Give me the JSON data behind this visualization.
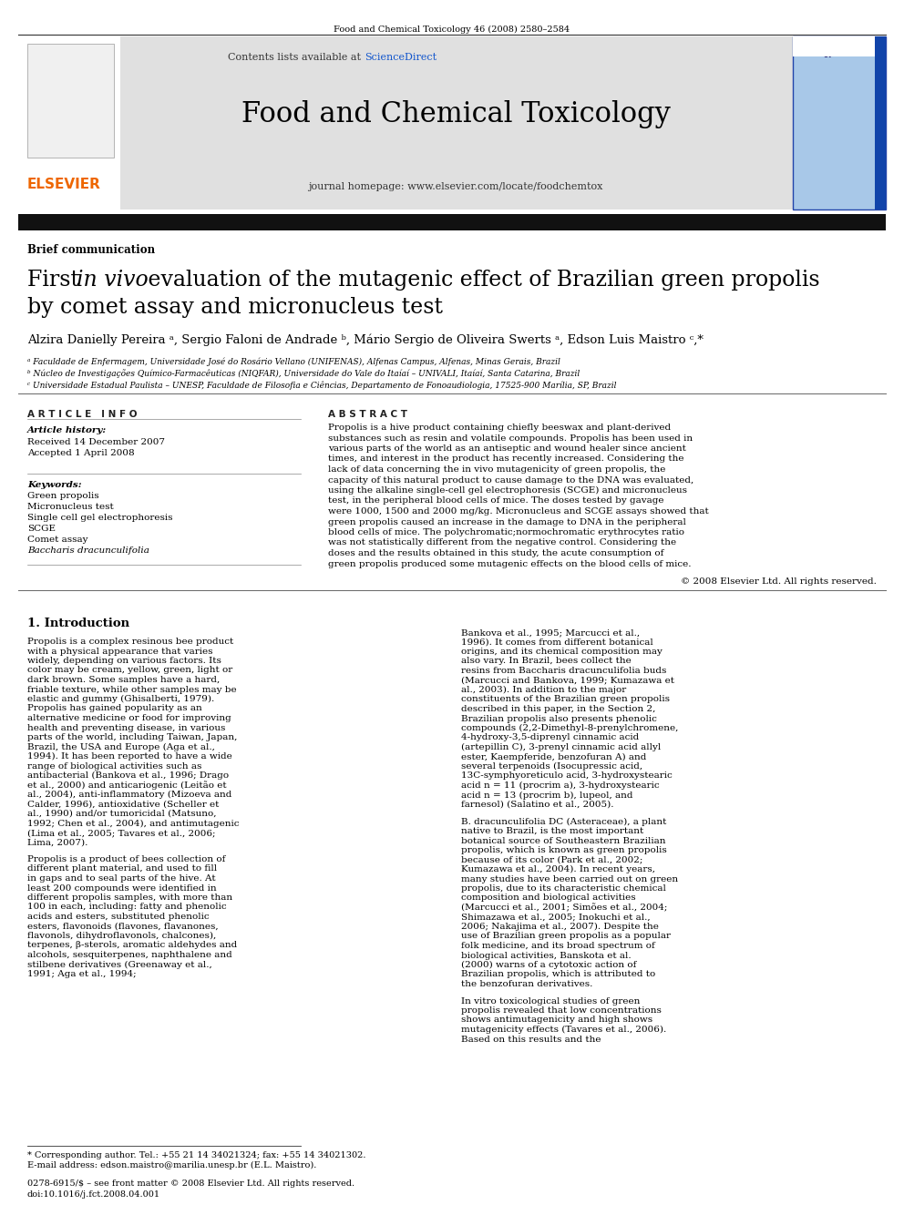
{
  "page_width": 9.92,
  "page_height": 13.23,
  "bg_color": "#ffffff",
  "top_citation": "Food and Chemical Toxicology 46 (2008) 2580–2584",
  "header_bg": "#e0e0e0",
  "header_journal_name": "Food and Chemical Toxicology",
  "header_contents_text": "Contents lists available at ",
  "header_sciencedirect": "ScienceDirect",
  "header_homepage": "journal homepage: www.elsevier.com/locate/foodchemtox",
  "thick_bar_color": "#111111",
  "section_label": "Brief communication",
  "article_history_label": "Article history:",
  "received": "Received 14 December 2007",
  "accepted": "Accepted 1 April 2008",
  "keywords_label": "Keywords:",
  "keywords": [
    "Green propolis",
    "Micronucleus test",
    "Single cell gel electrophoresis",
    "SCGE",
    "Comet assay",
    "Baccharis dracunculifolia"
  ],
  "abstract_text": "Propolis is a hive product containing chiefly beeswax and plant-derived substances such as resin and volatile compounds. Propolis has been used in various parts of the world as an antiseptic and wound healer since ancient times, and interest in the product has recently increased. Considering the lack of data concerning the in vivo mutagenicity of green propolis, the capacity of this natural product to cause damage to the DNA was evaluated, using the alkaline single-cell gel electrophoresis (SCGE) and micronucleus test, in the peripheral blood cells of mice. The doses tested by gavage were 1000, 1500 and 2000 mg/kg. Micronucleus and SCGE assays showed that green propolis caused an increase in the damage to DNA in the peripheral blood cells of mice. The polychromatic;normochromatic erythrocytes ratio was not statistically different from the negative control. Considering the doses and the results obtained in this study, the acute consumption of green propolis produced some mutagenic effects on the blood cells of mice.",
  "copyright": "© 2008 Elsevier Ltd. All rights reserved.",
  "intro_col1_para1": "    Propolis is a complex resinous bee product with a physical appearance that varies widely, depending on various factors. Its color may be cream, yellow, green, light or dark brown. Some samples have a hard, friable texture, while other samples may be elastic and gummy (Ghisalberti, 1979). Propolis has gained popularity as an alternative medicine or food for improving health and preventing disease, in various parts of the world, including Taiwan, Japan, Brazil, the USA and Europe (Aga et al., 1994). It has been reported to have a wide range of biological activities such as antibacterial (Bankova et al., 1996; Drago et al., 2000) and anticariogenic (Leitão et al., 2004), anti-inflammatory (Mizoeva and Calder, 1996), antioxidative (Scheller et al., 1990) and/or tumoricidal (Matsuno, 1992; Chen et al., 2004), and antimutagenic (Lima et al., 2005; Tavares et al., 2006; Lima, 2007).",
  "intro_col1_para2": "    Propolis is a product of bees collection of different plant material, and used to fill in gaps and to seal parts of the hive. At least 200 compounds were identified in different propolis samples, with more than 100 in each, including: fatty and phenolic acids and esters, substituted phenolic esters, flavonoids (flavones, flavanones, flavonols, dihydroflavonols, chalcones), terpenes, β-sterols, aromatic aldehydes and alcohols, sesquiterpenes, naphthalene and stilbene derivatives (Greenaway et al., 1991; Aga et al., 1994;",
  "intro_col2_text1": "Bankova et al., 1995; Marcucci et al., 1996). It comes from different botanical origins, and its chemical composition may also vary. In Brazil, bees collect the resins from Baccharis dracunculifolia buds (Marcucci and Bankova, 1999; Kumazawa et al., 2003). In addition to the major constituents of the Brazilian green propolis described in this paper, in the Section 2, Brazilian propolis also presents phenolic compounds (2,2-Dimethyl-8-prenylchromene, 4-hydroxy-3,5-diprenyl cinnamic acid (artepillin C), 3-prenyl cinnamic acid allyl ester, Kaempferide, benzofuran A) and several terpenoids (Isocupressic acid, 13C-symphyoreticulo acid, 3-hydroxystearic acid n = 11 (procrim a), 3-hydroxystearic acid n = 13 (procrim b), lupeol, and farnesol) (Salatino et al., 2005).",
  "intro_col2_para2": "    B. dracunculifolia DC (Asteraceae), a plant native to Brazil, is the most important botanical source of Southeastern Brazilian propolis, which is known as green propolis because of its color (Park et al., 2002; Kumazawa et al., 2004). In recent years, many studies have been carried out on green propolis, due to its characteristic chemical composition and biological activities (Marcucci et al., 2001; Simões et al., 2004; Shimazawa et al., 2005; Inokuchi et al., 2006; Nakajima et al., 2007). Despite the use of Brazilian green propolis as a popular folk medicine, and its broad spectrum of biological activities, Banskota et al. (2000) warns of a cytotoxic action of Brazilian propolis, which is attributed to the benzofuran derivatives.",
  "intro_col2_para3": "    In vitro toxicological studies of green propolis revealed that low concentrations shows antimutagenicity and high shows mutagenicity effects (Tavares et al., 2006). Based on this results and the",
  "footnote_star": "* Corresponding author. Tel.: +55 21 14 34021324; fax: +55 14 34021302.",
  "footnote_email": "E-mail address: edson.maistro@marilia.unesp.br (E.L. Maistro).",
  "bottom_line1": "0278-6915/$ – see front matter © 2008 Elsevier Ltd. All rights reserved.",
  "bottom_line2": "doi:10.1016/j.fct.2008.04.001",
  "blue_color": "#1155cc",
  "orange_color": "#ee6600"
}
